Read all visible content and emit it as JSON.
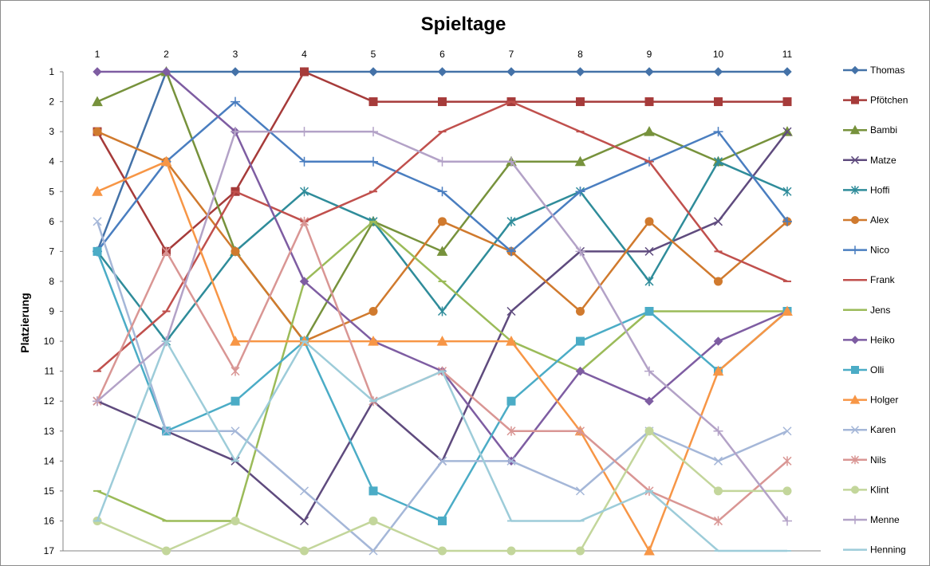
{
  "chart_data": {
    "type": "line",
    "title": "Spieltage",
    "xlabel": "",
    "ylabel": "Platzierung",
    "x": [
      1,
      2,
      3,
      4,
      5,
      6,
      7,
      8,
      9,
      10,
      11
    ],
    "ylim": [
      1,
      17
    ],
    "y_ticks": [
      1,
      2,
      3,
      4,
      5,
      6,
      7,
      8,
      9,
      10,
      11,
      12,
      13,
      14,
      15,
      16,
      17
    ],
    "y_inverted": true,
    "x_axis_position": "top",
    "grid": false,
    "legend_position": "right",
    "series": [
      {
        "name": "Thomas",
        "color": "#4472A8",
        "marker": "diamond",
        "values": [
          7,
          1,
          1,
          1,
          1,
          1,
          1,
          1,
          1,
          1,
          1
        ]
      },
      {
        "name": "Pfötchen",
        "color": "#A63B3A",
        "marker": "square",
        "values": [
          3,
          7,
          5,
          1,
          2,
          2,
          2,
          2,
          2,
          2,
          2
        ]
      },
      {
        "name": "Bambi",
        "color": "#77923C",
        "marker": "triangle",
        "values": [
          2,
          1,
          7,
          10,
          6,
          7,
          4,
          4,
          3,
          4,
          3
        ]
      },
      {
        "name": "Matze",
        "color": "#5F4B7E",
        "marker": "x",
        "values": [
          12,
          13,
          14,
          16,
          12,
          14,
          9,
          7,
          7,
          6,
          3
        ]
      },
      {
        "name": "Hoffi",
        "color": "#2F8C9A",
        "marker": "star",
        "values": [
          7,
          10,
          7,
          5,
          6,
          9,
          6,
          5,
          8,
          4,
          5
        ]
      },
      {
        "name": "Alex",
        "color": "#D07A2E",
        "marker": "circle",
        "values": [
          3,
          4,
          7,
          10,
          9,
          6,
          7,
          9,
          6,
          8,
          6
        ]
      },
      {
        "name": "Nico",
        "color": "#4A7EC0",
        "marker": "plus",
        "values": [
          7,
          4,
          2,
          4,
          4,
          5,
          7,
          5,
          4,
          3,
          6
        ]
      },
      {
        "name": "Frank",
        "color": "#C0504D",
        "marker": "dash",
        "values": [
          11,
          9,
          5,
          6,
          5,
          3,
          2,
          3,
          4,
          7,
          8
        ]
      },
      {
        "name": "Jens",
        "color": "#9BBB59",
        "marker": "dash",
        "values": [
          15,
          16,
          16,
          8,
          6,
          8,
          10,
          11,
          9,
          9,
          9
        ]
      },
      {
        "name": "Heiko",
        "color": "#7E5DA2",
        "marker": "diamond",
        "values": [
          1,
          1,
          3,
          8,
          10,
          11,
          14,
          11,
          12,
          10,
          9
        ]
      },
      {
        "name": "Olli",
        "color": "#4BACC6",
        "marker": "square",
        "values": [
          7,
          13,
          12,
          10,
          15,
          16,
          12,
          10,
          9,
          11,
          9
        ]
      },
      {
        "name": "Holger",
        "color": "#F79646",
        "marker": "triangle",
        "values": [
          5,
          4,
          10,
          10,
          10,
          10,
          10,
          13,
          17,
          11,
          9
        ]
      },
      {
        "name": "Karen",
        "color": "#A5B7D8",
        "marker": "x",
        "values": [
          6,
          13,
          13,
          15,
          17,
          14,
          14,
          15,
          13,
          14,
          13
        ]
      },
      {
        "name": "Nils",
        "color": "#D99694",
        "marker": "star",
        "values": [
          12,
          7,
          11,
          6,
          12,
          11,
          13,
          13,
          15,
          16,
          14
        ]
      },
      {
        "name": "Klint",
        "color": "#C3D69B",
        "marker": "circle",
        "values": [
          16,
          17,
          16,
          17,
          16,
          17,
          17,
          17,
          13,
          15,
          15
        ]
      },
      {
        "name": "Menne",
        "color": "#B3A2C7",
        "marker": "plus",
        "values": [
          12,
          10,
          3,
          3,
          3,
          4,
          4,
          7,
          11,
          13,
          16
        ]
      },
      {
        "name": "Henning",
        "color": "#9DCCD9",
        "marker": "dash",
        "values": [
          16,
          10,
          14,
          10,
          12,
          11,
          16,
          16,
          15,
          17,
          17
        ]
      }
    ]
  }
}
